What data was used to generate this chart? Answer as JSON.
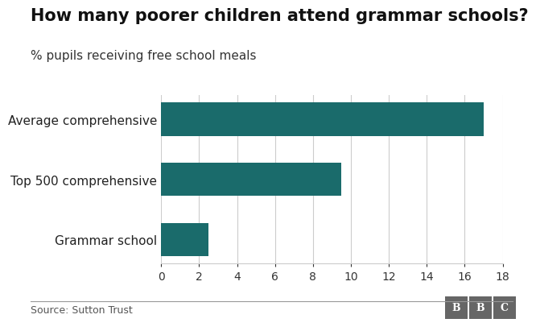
{
  "title": "How many poorer children attend grammar schools?",
  "subtitle": "% pupils receiving free school meals",
  "categories": [
    "Grammar school",
    "Top 500 comprehensive",
    "Average comprehensive"
  ],
  "values": [
    2.5,
    9.5,
    17.0
  ],
  "bar_color": "#1a6b6b",
  "xlim": [
    0,
    18
  ],
  "xticks": [
    0,
    2,
    4,
    6,
    8,
    10,
    12,
    14,
    16,
    18
  ],
  "source": "Source: Sutton Trust",
  "bbc_label": "BBC",
  "background_color": "#ffffff",
  "grid_color": "#cccccc",
  "title_fontsize": 15,
  "subtitle_fontsize": 11,
  "tick_fontsize": 10,
  "label_fontsize": 11,
  "source_fontsize": 9,
  "bbc_box_color": "#666666"
}
